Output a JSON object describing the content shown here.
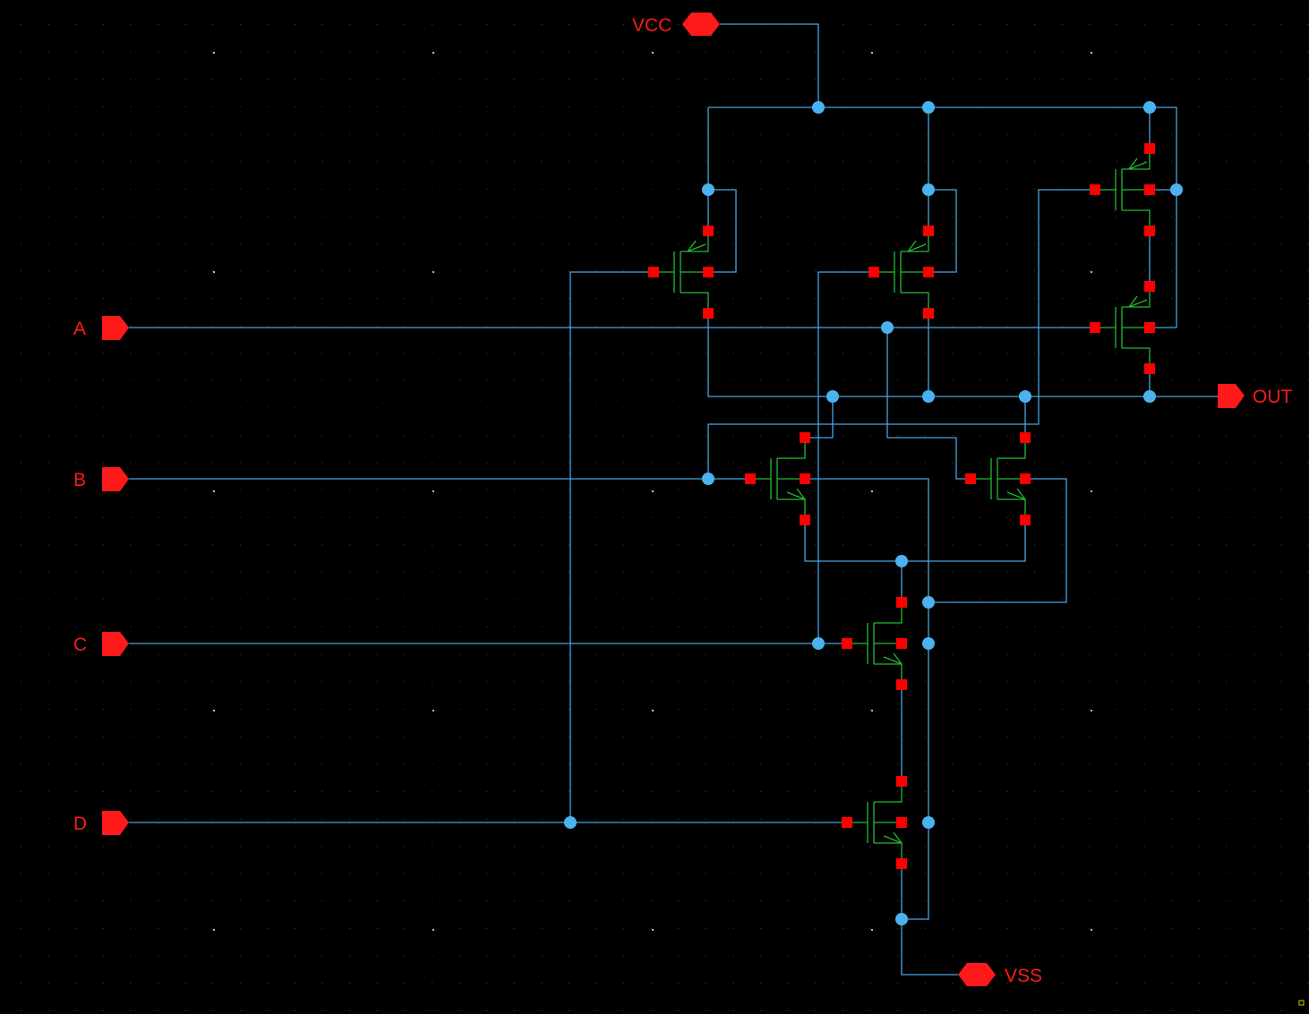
{
  "schematic": {
    "colors": {
      "background": "#000000",
      "wire": "#4aa3df",
      "junction": "#4ab3ef",
      "transistor": "#22bb33",
      "terminal": "#ff0000",
      "pin": "#ff1a1a",
      "grid": "#4a4a4a",
      "grid_major": "#bbbbbb",
      "corner_marker": "#d4c400"
    },
    "pins": {
      "vcc": "VCC",
      "vss": "VSS",
      "a": "A",
      "b": "B",
      "c": "C",
      "d": "D",
      "out": "OUT"
    },
    "transistors": [
      {
        "id": "M1",
        "type": "pmos"
      },
      {
        "id": "M2",
        "type": "pmos"
      },
      {
        "id": "M3",
        "type": "pmos"
      },
      {
        "id": "M4",
        "type": "pmos"
      },
      {
        "id": "M5",
        "type": "nmos"
      },
      {
        "id": "M6",
        "type": "nmos"
      },
      {
        "id": "M7",
        "type": "nmos"
      },
      {
        "id": "M8",
        "type": "nmos"
      }
    ]
  }
}
